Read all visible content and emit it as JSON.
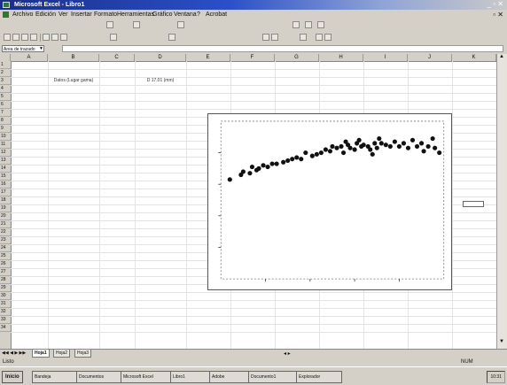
{
  "window": {
    "title": "Microsoft Excel - Libro1"
  },
  "menu": {
    "items": [
      "Archivo",
      "Edición",
      "Ver",
      "Insertar",
      "Formato",
      "Herramientas",
      "Gráfico",
      "Ventana",
      "?",
      "Acrobat"
    ]
  },
  "namebox": {
    "value": "Area de trazado"
  },
  "grid": {
    "columns": [
      "A",
      "B",
      "C",
      "D",
      "E",
      "F",
      "G",
      "H",
      "I",
      "J",
      "K"
    ],
    "rows": [
      "1",
      "2",
      "3",
      "4",
      "5",
      "6",
      "7",
      "8",
      "9",
      "10",
      "11",
      "12",
      "13",
      "14",
      "15",
      "16",
      "17",
      "18",
      "19",
      "20",
      "21",
      "22",
      "23",
      "24",
      "25",
      "26",
      "27",
      "28",
      "29",
      "30",
      "31",
      "32",
      "33",
      "34"
    ],
    "headers": {
      "col_b": "Datos (Lugar gama)",
      "col_d": "D 17,01 (mm)"
    }
  },
  "sheets": {
    "tabs": [
      "Hoja1",
      "Hoja2",
      "Hoja3"
    ],
    "active": "Hoja1"
  },
  "status": {
    "left": "Listo",
    "right": "NUM"
  },
  "taskbar": {
    "start": "Inicio",
    "buttons": [
      "Bandeja",
      "Documentos",
      "Microsoft Excel",
      "Libro1",
      "Adobe",
      "Documento1",
      "Explorador"
    ],
    "clock": "10:31"
  },
  "chart_data": {
    "type": "scatter",
    "title": "",
    "xlabel": "",
    "ylabel": "",
    "xlim": [
      0,
      1
    ],
    "ylim": [
      0,
      1
    ],
    "legend": {
      "placement": "right",
      "label": ""
    },
    "points": [
      [
        0.04,
        0.63
      ],
      [
        0.09,
        0.66
      ],
      [
        0.1,
        0.68
      ],
      [
        0.13,
        0.67
      ],
      [
        0.14,
        0.71
      ],
      [
        0.16,
        0.69
      ],
      [
        0.17,
        0.7
      ],
      [
        0.19,
        0.72
      ],
      [
        0.21,
        0.71
      ],
      [
        0.23,
        0.73
      ],
      [
        0.25,
        0.73
      ],
      [
        0.28,
        0.74
      ],
      [
        0.3,
        0.75
      ],
      [
        0.32,
        0.76
      ],
      [
        0.34,
        0.77
      ],
      [
        0.36,
        0.76
      ],
      [
        0.38,
        0.8
      ],
      [
        0.41,
        0.78
      ],
      [
        0.43,
        0.79
      ],
      [
        0.45,
        0.8
      ],
      [
        0.47,
        0.82
      ],
      [
        0.49,
        0.81
      ],
      [
        0.5,
        0.84
      ],
      [
        0.52,
        0.83
      ],
      [
        0.54,
        0.84
      ],
      [
        0.55,
        0.8
      ],
      [
        0.57,
        0.85
      ],
      [
        0.58,
        0.83
      ],
      [
        0.6,
        0.82
      ],
      [
        0.61,
        0.86
      ],
      [
        0.63,
        0.84
      ],
      [
        0.64,
        0.85
      ],
      [
        0.66,
        0.84
      ],
      [
        0.67,
        0.82
      ],
      [
        0.69,
        0.86
      ],
      [
        0.7,
        0.83
      ],
      [
        0.72,
        0.86
      ],
      [
        0.74,
        0.85
      ],
      [
        0.76,
        0.84
      ],
      [
        0.78,
        0.87
      ],
      [
        0.8,
        0.84
      ],
      [
        0.82,
        0.86
      ],
      [
        0.84,
        0.83
      ],
      [
        0.86,
        0.88
      ],
      [
        0.88,
        0.84
      ],
      [
        0.9,
        0.86
      ],
      [
        0.91,
        0.81
      ],
      [
        0.93,
        0.84
      ],
      [
        0.95,
        0.89
      ],
      [
        0.96,
        0.83
      ],
      [
        0.98,
        0.8
      ],
      [
        0.62,
        0.88
      ],
      [
        0.68,
        0.79
      ],
      [
        0.56,
        0.87
      ],
      [
        0.71,
        0.89
      ]
    ]
  }
}
